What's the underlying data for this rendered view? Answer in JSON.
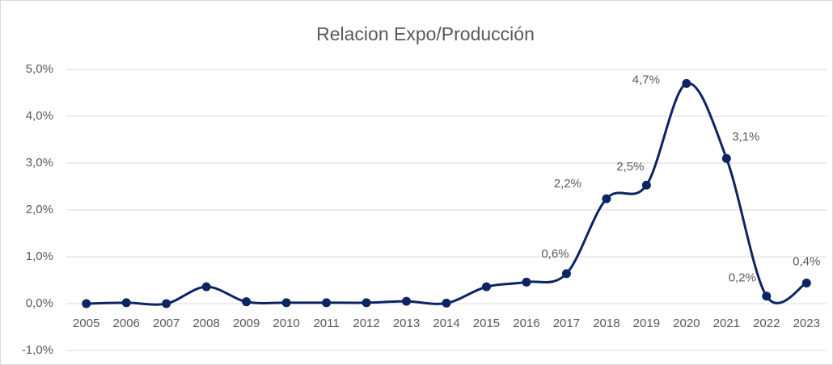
{
  "chart_data": {
    "type": "line",
    "title": "Relacion Expo/Producción",
    "categories": [
      "2005",
      "2006",
      "2007",
      "2008",
      "2009",
      "2010",
      "2011",
      "2012",
      "2013",
      "2014",
      "2015",
      "2016",
      "2017",
      "2018",
      "2019",
      "2020",
      "2021",
      "2022",
      "2023"
    ],
    "series": [
      {
        "name": "Relacion Expo/Producción",
        "color": "#0b2463",
        "values": [
          0.0,
          0.02,
          0.0,
          0.36,
          0.04,
          0.02,
          0.02,
          0.02,
          0.05,
          0.01,
          0.36,
          0.46,
          0.64,
          2.24,
          2.53,
          4.7,
          3.1,
          0.16,
          0.44
        ],
        "value_labels": [
          null,
          null,
          null,
          null,
          null,
          null,
          null,
          null,
          null,
          null,
          null,
          null,
          "0,6%",
          "2,2%",
          "2,5%",
          "4,7%",
          "3,1%",
          "0,2%",
          "0,4%"
        ]
      }
    ],
    "ylim": [
      -1,
      5
    ],
    "yticks": [
      {
        "value": -1,
        "label": "-1,0%"
      },
      {
        "value": 0,
        "label": "0,0%"
      },
      {
        "value": 1,
        "label": "1,0%"
      },
      {
        "value": 2,
        "label": "2,0%"
      },
      {
        "value": 3,
        "label": "3,0%"
      },
      {
        "value": 4,
        "label": "4,0%"
      },
      {
        "value": 5,
        "label": "5,0%"
      }
    ],
    "grid": true
  }
}
